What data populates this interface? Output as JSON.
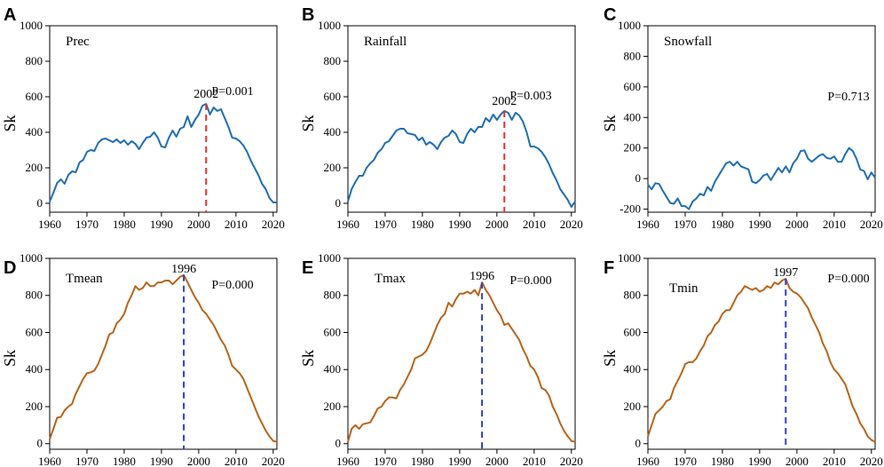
{
  "chart_data": [
    {
      "panel": "A",
      "type": "line",
      "title": "Prec",
      "ylabel": "Sk",
      "xlim": [
        1960,
        2021
      ],
      "ylim": [
        -50,
        1000
      ],
      "xticks": [
        1960,
        1970,
        1980,
        1990,
        2000,
        2010,
        2020
      ],
      "yticks": [
        0,
        200,
        400,
        600,
        800,
        1000
      ],
      "p_value": "P=0.001",
      "change_point": {
        "year": 2002,
        "label": "2002",
        "color": "#e8302a"
      },
      "line_color": "#1f6eb4",
      "x": [
        1960,
        1961,
        1962,
        1963,
        1964,
        1965,
        1966,
        1967,
        1968,
        1969,
        1970,
        1971,
        1972,
        1973,
        1974,
        1975,
        1976,
        1977,
        1978,
        1979,
        1980,
        1981,
        1982,
        1983,
        1984,
        1985,
        1986,
        1987,
        1988,
        1989,
        1990,
        1991,
        1992,
        1993,
        1994,
        1995,
        1996,
        1997,
        1998,
        1999,
        2000,
        2001,
        2002,
        2003,
        2004,
        2005,
        2006,
        2007,
        2008,
        2009,
        2010,
        2011,
        2012,
        2013,
        2014,
        2015,
        2016,
        2017,
        2018,
        2019,
        2020,
        2021
      ],
      "y": [
        10,
        60,
        115,
        135,
        110,
        160,
        180,
        175,
        230,
        245,
        290,
        300,
        295,
        340,
        360,
        365,
        355,
        345,
        360,
        340,
        355,
        330,
        350,
        335,
        305,
        340,
        370,
        375,
        400,
        370,
        320,
        315,
        370,
        410,
        375,
        420,
        430,
        490,
        430,
        470,
        500,
        550,
        560,
        500,
        540,
        520,
        530,
        480,
        430,
        370,
        365,
        350,
        325,
        290,
        240,
        200,
        160,
        110,
        80,
        30,
        5,
        5
      ]
    },
    {
      "panel": "B",
      "type": "line",
      "title": "Rainfall",
      "ylabel": "Sk",
      "xlim": [
        1960,
        2021
      ],
      "ylim": [
        -50,
        1000
      ],
      "xticks": [
        1960,
        1970,
        1980,
        1990,
        2000,
        2010,
        2020
      ],
      "yticks": [
        0,
        200,
        400,
        600,
        800,
        1000
      ],
      "p_value": "P=0.003",
      "change_point": {
        "year": 2002,
        "label": "2002",
        "color": "#e8302a"
      },
      "line_color": "#1f6eb4",
      "x": [
        1960,
        1961,
        1962,
        1963,
        1964,
        1965,
        1966,
        1967,
        1968,
        1969,
        1970,
        1971,
        1972,
        1973,
        1974,
        1975,
        1976,
        1977,
        1978,
        1979,
        1980,
        1981,
        1982,
        1983,
        1984,
        1985,
        1986,
        1987,
        1988,
        1989,
        1990,
        1991,
        1992,
        1993,
        1994,
        1995,
        1996,
        1997,
        1998,
        1999,
        2000,
        2001,
        2002,
        2003,
        2004,
        2005,
        2006,
        2007,
        2008,
        2009,
        2010,
        2011,
        2012,
        2013,
        2014,
        2015,
        2016,
        2017,
        2018,
        2019,
        2020,
        2021
      ],
      "y": [
        10,
        80,
        120,
        155,
        155,
        200,
        225,
        245,
        285,
        305,
        340,
        350,
        380,
        410,
        420,
        420,
        395,
        390,
        385,
        355,
        370,
        330,
        345,
        330,
        305,
        345,
        370,
        380,
        410,
        390,
        345,
        340,
        390,
        420,
        400,
        430,
        430,
        480,
        460,
        500,
        470,
        500,
        520,
        510,
        470,
        510,
        495,
        460,
        400,
        320,
        320,
        310,
        290,
        260,
        220,
        170,
        130,
        80,
        50,
        20,
        -20,
        10
      ]
    },
    {
      "panel": "C",
      "type": "line",
      "title": "Snowfall",
      "ylabel": "Sk",
      "xlim": [
        1960,
        2021
      ],
      "ylim": [
        -220,
        1000
      ],
      "xticks": [
        1960,
        1970,
        1980,
        1990,
        2000,
        2010,
        2020
      ],
      "yticks": [
        -200,
        0,
        200,
        400,
        600,
        800,
        1000
      ],
      "p_value": "P=0.713",
      "change_point": null,
      "line_color": "#1f6eb4",
      "x": [
        1960,
        1961,
        1962,
        1963,
        1964,
        1965,
        1966,
        1967,
        1968,
        1969,
        1970,
        1971,
        1972,
        1973,
        1974,
        1975,
        1976,
        1977,
        1978,
        1979,
        1980,
        1981,
        1982,
        1983,
        1984,
        1985,
        1986,
        1987,
        1988,
        1989,
        1990,
        1991,
        1992,
        1993,
        1994,
        1995,
        1996,
        1997,
        1998,
        1999,
        2000,
        2001,
        2002,
        2003,
        2004,
        2005,
        2006,
        2007,
        2008,
        2009,
        2010,
        2011,
        2012,
        2013,
        2014,
        2015,
        2016,
        2017,
        2018,
        2019,
        2020,
        2021
      ],
      "y": [
        -40,
        -70,
        -30,
        -35,
        -80,
        -120,
        -160,
        -165,
        -130,
        -180,
        -180,
        -200,
        -150,
        -130,
        -100,
        -110,
        -55,
        -80,
        -20,
        20,
        60,
        100,
        110,
        85,
        110,
        80,
        70,
        60,
        -20,
        -30,
        -10,
        20,
        30,
        -10,
        30,
        70,
        40,
        80,
        40,
        100,
        130,
        180,
        185,
        130,
        110,
        130,
        150,
        160,
        135,
        130,
        145,
        110,
        110,
        160,
        200,
        180,
        130,
        60,
        50,
        -5,
        40,
        5
      ]
    },
    {
      "panel": "D",
      "type": "line",
      "title": "Tmean",
      "ylabel": "Sk",
      "xlim": [
        1960,
        2021
      ],
      "ylim": [
        -30,
        1000
      ],
      "xticks": [
        1960,
        1970,
        1980,
        1990,
        2000,
        2010,
        2020
      ],
      "yticks": [
        0,
        200,
        400,
        600,
        800,
        1000
      ],
      "p_value": "P=0.000",
      "change_point": {
        "year": 1996,
        "label": "1996",
        "color": "#2d3fd6"
      },
      "line_color": "#b8641a",
      "x": [
        1960,
        1961,
        1962,
        1963,
        1964,
        1965,
        1966,
        1967,
        1968,
        1969,
        1970,
        1971,
        1972,
        1973,
        1974,
        1975,
        1976,
        1977,
        1978,
        1979,
        1980,
        1981,
        1982,
        1983,
        1984,
        1985,
        1986,
        1987,
        1988,
        1989,
        1990,
        1991,
        1992,
        1993,
        1994,
        1995,
        1996,
        1997,
        1998,
        1999,
        2000,
        2001,
        2002,
        2003,
        2004,
        2005,
        2006,
        2007,
        2008,
        2009,
        2010,
        2011,
        2012,
        2013,
        2014,
        2015,
        2016,
        2017,
        2018,
        2019,
        2020,
        2021
      ],
      "y": [
        25,
        80,
        140,
        145,
        180,
        200,
        215,
        270,
        310,
        350,
        380,
        385,
        395,
        430,
        480,
        530,
        590,
        600,
        650,
        670,
        700,
        760,
        800,
        850,
        830,
        840,
        870,
        850,
        850,
        870,
        870,
        880,
        880,
        860,
        880,
        900,
        910,
        870,
        830,
        790,
        760,
        720,
        700,
        670,
        640,
        600,
        560,
        530,
        480,
        420,
        400,
        380,
        350,
        300,
        250,
        200,
        150,
        110,
        70,
        40,
        15,
        10
      ]
    },
    {
      "panel": "E",
      "type": "line",
      "title": "Tmax",
      "ylabel": "Sk",
      "xlim": [
        1960,
        2021
      ],
      "ylim": [
        -30,
        1000
      ],
      "xticks": [
        1960,
        1970,
        1980,
        1990,
        2000,
        2010,
        2020
      ],
      "yticks": [
        0,
        200,
        400,
        600,
        800,
        1000
      ],
      "p_value": "P=0.000",
      "change_point": {
        "year": 1996,
        "label": "1996",
        "color": "#2d3fd6"
      },
      "line_color": "#b8641a",
      "x": [
        1960,
        1961,
        1962,
        1963,
        1964,
        1965,
        1966,
        1967,
        1968,
        1969,
        1970,
        1971,
        1972,
        1973,
        1974,
        1975,
        1976,
        1977,
        1978,
        1979,
        1980,
        1981,
        1982,
        1983,
        1984,
        1985,
        1986,
        1987,
        1988,
        1989,
        1990,
        1991,
        1992,
        1993,
        1994,
        1995,
        1996,
        1997,
        1998,
        1999,
        2000,
        2001,
        2002,
        2003,
        2004,
        2005,
        2006,
        2007,
        2008,
        2009,
        2010,
        2011,
        2012,
        2013,
        2014,
        2015,
        2016,
        2017,
        2018,
        2019,
        2020,
        2021
      ],
      "y": [
        10,
        80,
        100,
        80,
        105,
        110,
        115,
        150,
        190,
        200,
        230,
        250,
        250,
        245,
        290,
        320,
        360,
        400,
        460,
        470,
        480,
        500,
        540,
        590,
        640,
        680,
        700,
        760,
        740,
        780,
        810,
        810,
        820,
        810,
        830,
        800,
        870,
        830,
        800,
        760,
        720,
        690,
        640,
        650,
        620,
        590,
        560,
        510,
        470,
        420,
        400,
        360,
        300,
        290,
        260,
        200,
        160,
        110,
        70,
        40,
        15,
        10
      ]
    },
    {
      "panel": "F",
      "type": "line",
      "title": "Tmin",
      "ylabel": "Sk",
      "xlim": [
        1960,
        2021
      ],
      "ylim": [
        -30,
        1000
      ],
      "xticks": [
        1960,
        1970,
        1980,
        1990,
        2000,
        2010,
        2020
      ],
      "yticks": [
        0,
        200,
        400,
        600,
        800,
        1000
      ],
      "p_value": "P=0.000",
      "change_point": {
        "year": 1997,
        "label": "1997",
        "color": "#2d3fd6"
      },
      "line_color": "#b8641a",
      "x": [
        1960,
        1961,
        1962,
        1963,
        1964,
        1965,
        1966,
        1967,
        1968,
        1969,
        1970,
        1971,
        1972,
        1973,
        1974,
        1975,
        1976,
        1977,
        1978,
        1979,
        1980,
        1981,
        1982,
        1983,
        1984,
        1985,
        1986,
        1987,
        1988,
        1989,
        1990,
        1991,
        1992,
        1993,
        1994,
        1995,
        1996,
        1997,
        1998,
        1999,
        2000,
        2001,
        2002,
        2003,
        2004,
        2005,
        2006,
        2007,
        2008,
        2009,
        2010,
        2011,
        2012,
        2013,
        2014,
        2015,
        2016,
        2017,
        2018,
        2019,
        2020,
        2021
      ],
      "y": [
        40,
        100,
        160,
        180,
        200,
        230,
        240,
        300,
        340,
        380,
        430,
        440,
        440,
        460,
        500,
        530,
        580,
        600,
        640,
        660,
        700,
        720,
        720,
        760,
        800,
        820,
        850,
        840,
        830,
        840,
        820,
        830,
        850,
        840,
        870,
        860,
        880,
        890,
        840,
        820,
        810,
        790,
        760,
        730,
        680,
        640,
        600,
        540,
        500,
        440,
        400,
        380,
        350,
        320,
        260,
        200,
        160,
        110,
        80,
        40,
        20,
        10
      ]
    }
  ]
}
